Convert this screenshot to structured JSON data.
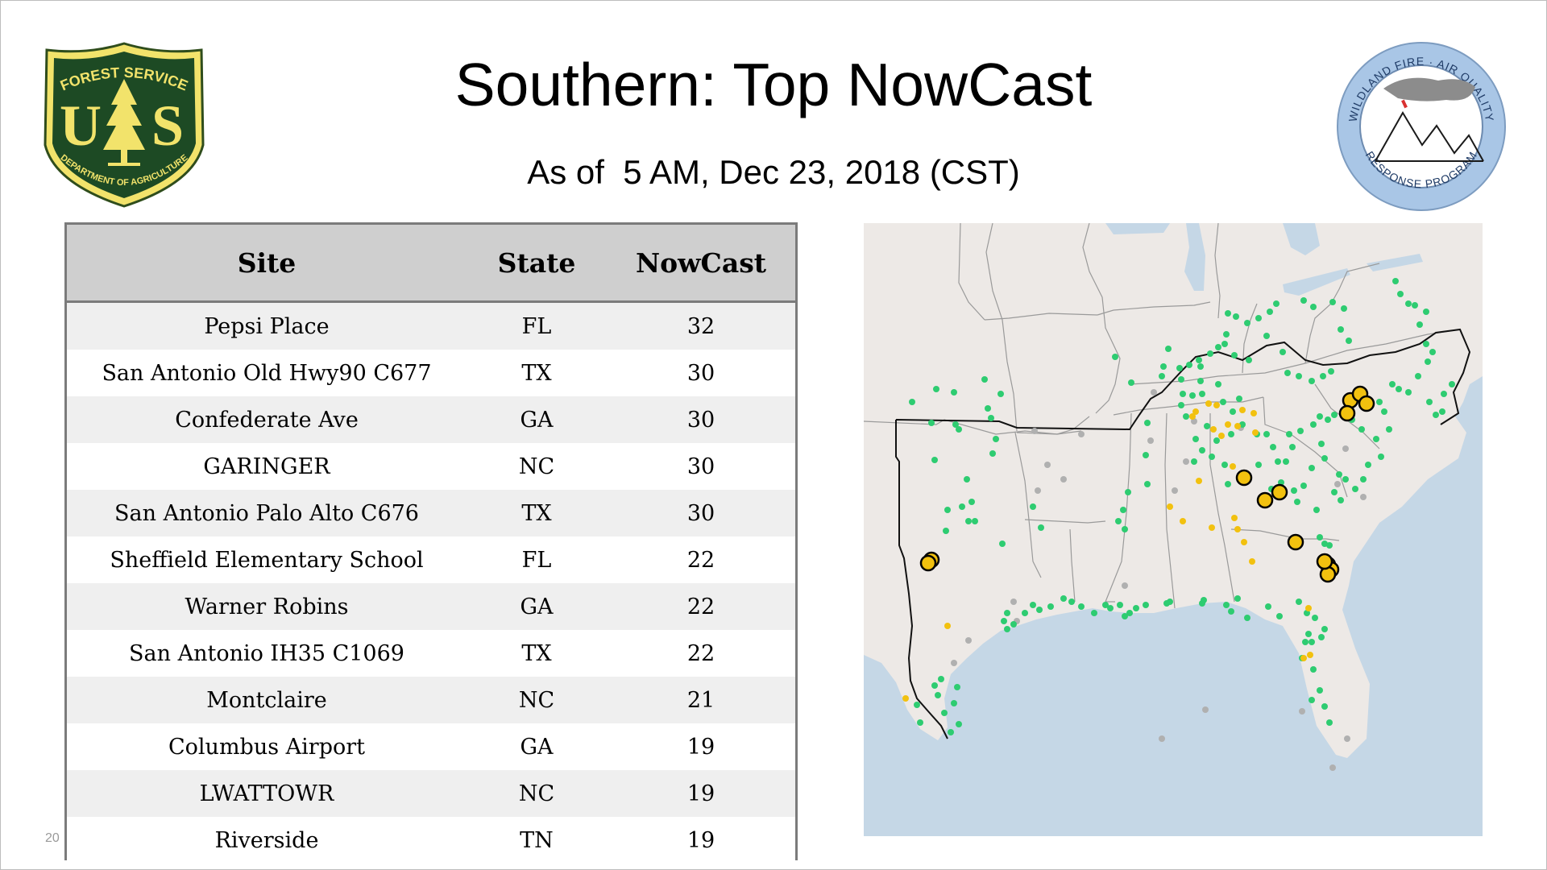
{
  "title": "Southern: Top NowCast",
  "subtitle": "As of  5 AM, Dec 23, 2018 (CST)",
  "page_number": "20",
  "logos": {
    "forest_service": {
      "top_text": "FOREST SERVICE",
      "letters_left": "U",
      "letters_right": "S",
      "bottom_text": "DEPARTMENT OF AGRICULTURE"
    },
    "wildland_fire": {
      "top_text": "WILDLAND FIRE · AIR QUALITY",
      "bottom_text": "RESPONSE PROGRAM"
    }
  },
  "table": {
    "columns": [
      "Site",
      "State",
      "NowCast"
    ],
    "rows": [
      {
        "site": "Pepsi Place",
        "state": "FL",
        "nowcast": "32"
      },
      {
        "site": "San Antonio Old Hwy90 C677",
        "state": "TX",
        "nowcast": "30"
      },
      {
        "site": "Confederate Ave",
        "state": "GA",
        "nowcast": "30"
      },
      {
        "site": "GARINGER",
        "state": "NC",
        "nowcast": "30"
      },
      {
        "site": "San Antonio Palo Alto C676",
        "state": "TX",
        "nowcast": "30"
      },
      {
        "site": "Sheffield Elementary School",
        "state": "FL",
        "nowcast": "22"
      },
      {
        "site": "Warner Robins",
        "state": "GA",
        "nowcast": "22"
      },
      {
        "site": "San Antonio IH35 C1069",
        "state": "TX",
        "nowcast": "22"
      },
      {
        "site": "Montclaire",
        "state": "NC",
        "nowcast": "21"
      },
      {
        "site": "Columbus Airport",
        "state": "GA",
        "nowcast": "19"
      },
      {
        "site": "LWATTOWR",
        "state": "NC",
        "nowcast": "19"
      },
      {
        "site": "Riverside",
        "state": "TN",
        "nowcast": "19"
      }
    ]
  },
  "map": {
    "colors": {
      "land": "#ede9e6",
      "water": "#c5d7e6",
      "good": "#2ecc71",
      "moderate": "#f2c10f",
      "highlight_outline": "#000000",
      "no_data": "#b0b0b0"
    }
  }
}
